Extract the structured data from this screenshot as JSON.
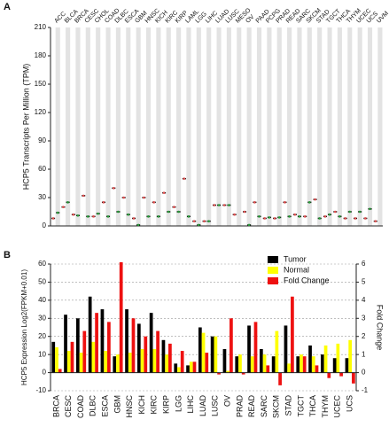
{
  "chart_data": [
    {
      "type": "strip",
      "panel": "A",
      "y_label": "HCP5 Transcripts Per Million (TPM)",
      "categories": [
        "ACC",
        "BLCA",
        "BRCA",
        "CESC",
        "CHOL",
        "COAD",
        "DLBC",
        "ESCA",
        "GBM",
        "HNSC",
        "KICH",
        "KIRC",
        "KIRP",
        "LAML",
        "LGG",
        "LIHC",
        "LUAD",
        "LUSC",
        "MESO",
        "OV",
        "PAAD",
        "PCPG",
        "PRAD",
        "READ",
        "SARC",
        "SKCM",
        "STAD",
        "TGCT",
        "THCA",
        "THYM",
        "UCEC",
        "UCS",
        "UVM"
      ],
      "category_colors": [
        "#111",
        "#111",
        "#111",
        "#e05050",
        "#111",
        "#e05050",
        "#e05050",
        "#e05050",
        "#e05050",
        "#e05050",
        "#e05050",
        "#e05050",
        "#111",
        "#e05050",
        "#111",
        "#111",
        "#111",
        "#111",
        "#111",
        "#e05050",
        "#e05050",
        "#111",
        "#111",
        "#e05050",
        "#111",
        "#2a9a3a",
        "#e05050",
        "#111",
        "#111",
        "#111",
        "#111",
        "#2a9a3a",
        "#111"
      ],
      "series": [
        {
          "name": "Tumor",
          "color": "#e05050",
          "values": [
            8,
            20,
            12,
            32,
            10,
            25,
            40,
            30,
            8,
            30,
            25,
            35,
            20,
            50,
            5,
            5,
            22,
            22,
            12,
            15,
            25,
            8,
            8,
            25,
            12,
            10,
            28,
            10,
            15,
            8,
            8,
            8,
            5
          ]
        },
        {
          "name": "Normal",
          "color": "#2a9a3a",
          "values": [
            14,
            25,
            11,
            10,
            13,
            10,
            15,
            12,
            1,
            10,
            10,
            15,
            15,
            10,
            1,
            5,
            22,
            22,
            null,
            1,
            10,
            9,
            9,
            10,
            10,
            25,
            8,
            12,
            10,
            15,
            15,
            18,
            null
          ]
        }
      ],
      "ylim": [
        0,
        210
      ],
      "yticks": [
        0,
        30,
        60,
        90,
        120,
        150,
        180,
        210
      ]
    },
    {
      "type": "bar",
      "panel": "B",
      "y_label": "HCP5 Expression Log2(FPKM+0.01)",
      "y2_label": "Fold Change",
      "categories": [
        "BRCA",
        "CESC",
        "COAD",
        "DLBC",
        "ESCA",
        "GBM",
        "HNSC",
        "KICH",
        "KIRC",
        "KIRP",
        "LGG",
        "LIHC",
        "LUAD",
        "LUSC",
        "OV",
        "PRAD",
        "READ",
        "SARC",
        "SKCM",
        "STAD",
        "TGCT",
        "THCA",
        "THYM",
        "UCEC",
        "UCS"
      ],
      "series": [
        {
          "name": "Tumor",
          "color": "#000000",
          "values": [
            17,
            32,
            30,
            42,
            35,
            9,
            35,
            27,
            33,
            18,
            5,
            4,
            25,
            20,
            13,
            9,
            26,
            13,
            9,
            26,
            9,
            15,
            10,
            8,
            8
          ]
        },
        {
          "name": "Normal",
          "color": "#ffff00",
          "values": [
            14,
            12,
            11,
            17,
            12,
            10,
            11,
            13,
            13,
            10,
            3,
            6,
            22,
            20,
            1,
            10,
            9,
            10,
            23,
            5,
            10,
            9,
            15,
            16,
            18
          ]
        },
        {
          "name": "Fold Change",
          "color": "#ee1111",
          "axis": "y2",
          "values": [
            0.2,
            1.7,
            2.3,
            3.3,
            2.8,
            6.1,
            3.0,
            2.0,
            2.3,
            1.6,
            1.2,
            0.6,
            1.1,
            -0.1,
            3.0,
            -0.1,
            2.8,
            0.4,
            -0.7,
            4.2,
            0.9,
            0.4,
            -0.3,
            -0.2,
            -0.6
          ]
        }
      ],
      "ylim": [
        -10,
        60
      ],
      "yticks": [
        -10,
        0,
        10,
        20,
        30,
        40,
        50,
        60
      ],
      "y2lim": [
        -1,
        6
      ],
      "y2ticks": [
        -1,
        0,
        1,
        2,
        3,
        4,
        5,
        6
      ],
      "grid": true
    }
  ]
}
